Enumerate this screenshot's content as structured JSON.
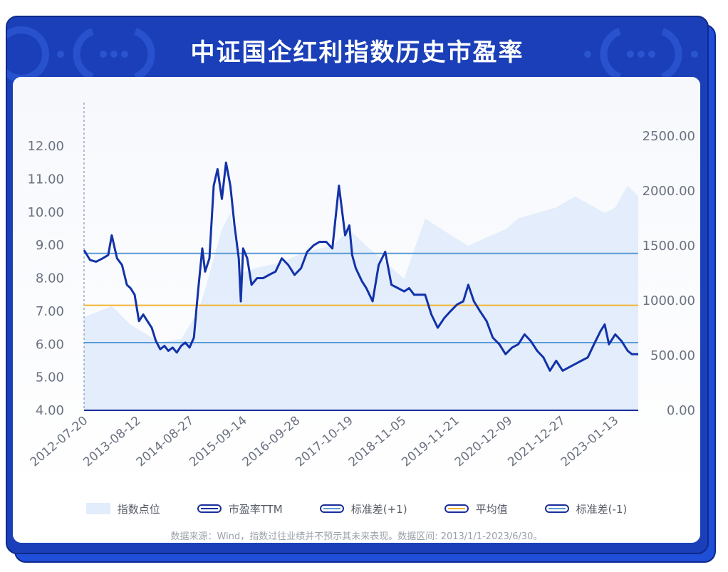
{
  "title": "中证国企红利指数历史市盈率",
  "source_note": "数据来源：Wind，指数过往业绩并不预示其未来表现。数据区间: 2013/1/1-2023/6/30。",
  "colors": {
    "frame": "#1a3fb8",
    "pe_line": "#1232a8",
    "std_plus": "#5b9bd5",
    "mean": "#f2b533",
    "std_minus": "#5b9bd5",
    "index_area": "#e3edfb"
  },
  "legend": [
    {
      "label": "指数点位",
      "kind": "area",
      "color": "#e2ecfb"
    },
    {
      "label": "市盈率TTM",
      "kind": "line",
      "color": "#1232a8"
    },
    {
      "label": "标准差(+1)",
      "kind": "line",
      "color": "#5b9bd5"
    },
    {
      "label": "平均值",
      "kind": "line",
      "color": "#f2b533"
    },
    {
      "label": "标准差(-1)",
      "kind": "line",
      "color": "#5b9bd5"
    }
  ],
  "chart_data": {
    "type": "line",
    "x_tick_labels": [
      "2012-07-20",
      "2013-08-12",
      "2014-08-27",
      "2015-09-14",
      "2016-09-28",
      "2017-10-19",
      "2018-11-05",
      "2019-11-21",
      "2020-12-09",
      "2021-12-27",
      "2023-01-13"
    ],
    "x_range": [
      "2012-07-20",
      "2023-06-30"
    ],
    "y_left": {
      "ticks": [
        "4.00",
        "5.00",
        "6.00",
        "7.00",
        "8.00",
        "9.00",
        "10.00",
        "11.00",
        "12.00"
      ],
      "range": [
        4,
        12.8
      ]
    },
    "y_right": {
      "ticks": [
        "0.00",
        "500.00",
        "1000.00",
        "1500.00",
        "2000.00",
        "2500.00"
      ],
      "range": [
        0,
        2650
      ]
    },
    "reference_lines": [
      {
        "name": "标准差(+1)",
        "value": 8.75,
        "axis": "left"
      },
      {
        "name": "平均值",
        "value": 7.18,
        "axis": "left"
      },
      {
        "name": "标准差(-1)",
        "value": 6.05,
        "axis": "left"
      }
    ],
    "series": [
      {
        "name": "市盈率TTM",
        "axis": "left",
        "type": "line",
        "x": [
          "2012-07-20",
          "2012-09-01",
          "2012-10-15",
          "2012-12-01",
          "2013-01-10",
          "2013-02-05",
          "2013-03-15",
          "2013-04-20",
          "2013-05-25",
          "2013-06-20",
          "2013-07-20",
          "2013-08-20",
          "2013-09-20",
          "2013-10-20",
          "2013-11-20",
          "2013-12-20",
          "2014-01-20",
          "2014-02-20",
          "2014-03-20",
          "2014-04-20",
          "2014-05-20",
          "2014-06-20",
          "2014-07-20",
          "2014-08-20",
          "2014-09-20",
          "2014-10-20",
          "2014-11-20",
          "2014-12-10",
          "2015-01-10",
          "2015-02-10",
          "2015-03-10",
          "2015-04-10",
          "2015-05-10",
          "2015-06-10",
          "2015-07-10",
          "2015-08-10",
          "2015-08-25",
          "2015-09-10",
          "2015-10-10",
          "2015-11-10",
          "2015-12-20",
          "2016-02-01",
          "2016-03-15",
          "2016-05-01",
          "2016-06-15",
          "2016-08-01",
          "2016-09-15",
          "2016-11-01",
          "2016-12-15",
          "2017-02-01",
          "2017-03-15",
          "2017-05-01",
          "2017-06-15",
          "2017-08-01",
          "2017-09-15",
          "2017-10-15",
          "2017-11-05",
          "2017-12-01",
          "2018-01-15",
          "2018-02-15",
          "2018-04-01",
          "2018-05-15",
          "2018-07-01",
          "2018-08-15",
          "2018-10-01",
          "2018-11-15",
          "2018-12-20",
          "2019-01-25",
          "2019-03-01",
          "2019-04-15",
          "2019-05-30",
          "2019-07-15",
          "2019-09-01",
          "2019-10-15",
          "2019-12-01",
          "2020-01-15",
          "2020-02-20",
          "2020-04-01",
          "2020-05-15",
          "2020-07-01",
          "2020-08-15",
          "2020-10-01",
          "2020-11-15",
          "2021-01-01",
          "2021-02-15",
          "2021-04-01",
          "2021-05-15",
          "2021-07-01",
          "2021-08-15",
          "2021-10-01",
          "2021-11-15",
          "2022-01-01",
          "2022-02-15",
          "2022-04-01",
          "2022-05-15",
          "2022-07-01",
          "2022-08-15",
          "2022-10-01",
          "2022-10-31",
          "2022-12-01",
          "2023-01-15",
          "2023-03-01",
          "2023-04-15",
          "2023-05-15",
          "2023-06-30"
        ],
        "values": [
          8.85,
          8.55,
          8.5,
          8.6,
          8.7,
          9.3,
          8.6,
          8.4,
          7.8,
          7.7,
          7.5,
          6.7,
          6.9,
          6.7,
          6.5,
          6.1,
          5.85,
          5.95,
          5.8,
          5.9,
          5.75,
          5.95,
          6.05,
          5.9,
          6.2,
          7.6,
          8.9,
          8.2,
          8.6,
          10.8,
          11.3,
          10.4,
          11.5,
          10.8,
          9.6,
          8.6,
          7.3,
          8.9,
          8.6,
          7.8,
          8.0,
          8.0,
          8.1,
          8.2,
          8.6,
          8.4,
          8.1,
          8.3,
          8.8,
          9.0,
          9.1,
          9.1,
          8.9,
          10.8,
          9.3,
          9.6,
          8.7,
          8.3,
          7.9,
          7.7,
          7.3,
          8.4,
          8.8,
          7.8,
          7.7,
          7.6,
          7.7,
          7.5,
          7.5,
          7.5,
          6.9,
          6.5,
          6.8,
          7.0,
          7.2,
          7.3,
          7.8,
          7.3,
          7.0,
          6.7,
          6.2,
          6.0,
          5.7,
          5.9,
          6.0,
          6.3,
          6.1,
          5.8,
          5.6,
          5.2,
          5.5,
          5.2,
          5.3,
          5.4,
          5.5,
          5.6,
          6.0,
          6.4,
          6.6,
          6.0,
          6.3,
          6.1,
          5.8,
          5.7,
          5.7
        ]
      },
      {
        "name": "指数点位",
        "axis": "right",
        "type": "area",
        "x": [
          "2012-07-20",
          "2013-02-05",
          "2013-06-20",
          "2014-01-20",
          "2014-06-20",
          "2014-10-20",
          "2014-12-10",
          "2015-04-10",
          "2015-06-10",
          "2015-08-25",
          "2015-12-20",
          "2016-06-15",
          "2016-12-15",
          "2017-06-15",
          "2017-10-15",
          "2018-02-15",
          "2018-07-01",
          "2018-11-15",
          "2019-04-15",
          "2019-10-15",
          "2020-02-20",
          "2020-05-15",
          "2020-11-15",
          "2021-02-15",
          "2021-07-01",
          "2021-11-15",
          "2022-04-01",
          "2022-10-31",
          "2023-01-15",
          "2023-04-15",
          "2023-06-30"
        ],
        "values": [
          850,
          950,
          780,
          620,
          650,
          900,
          1100,
          1650,
          1800,
          1250,
          1300,
          1350,
          1450,
          1500,
          1650,
          1500,
          1350,
          1200,
          1750,
          1600,
          1500,
          1550,
          1650,
          1750,
          1800,
          1850,
          1950,
          1800,
          1850,
          2050,
          1950
        ]
      }
    ]
  }
}
